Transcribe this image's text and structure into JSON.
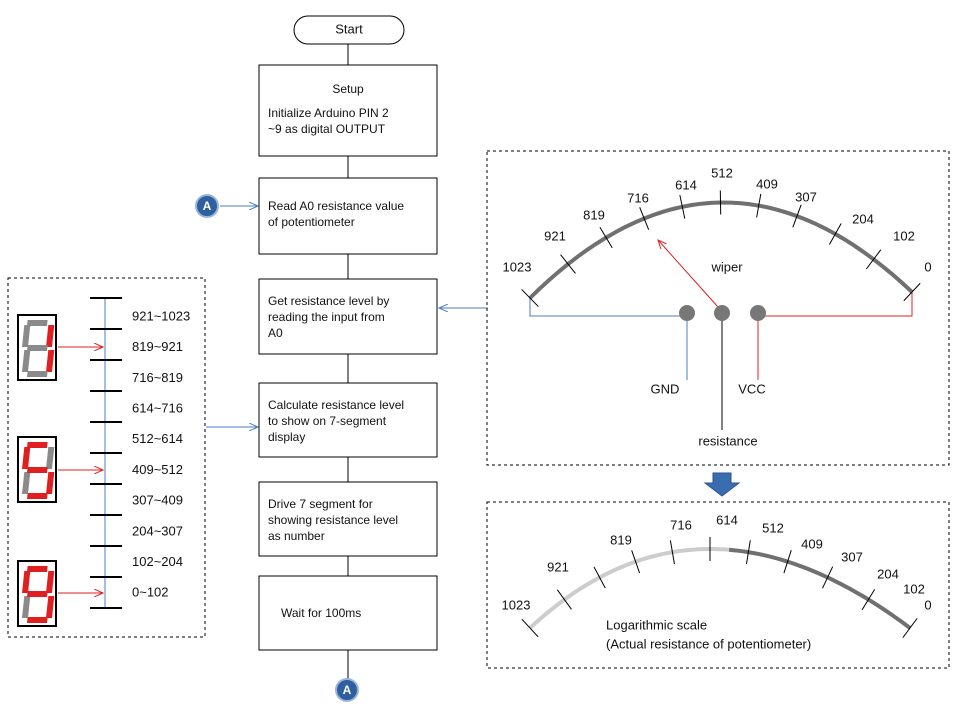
{
  "flowchart": {
    "start": "Start",
    "steps": [
      {
        "title": "Setup",
        "lines": [
          "Initialize Arduino PIN 2",
          "~9 as digital OUTPUT"
        ]
      },
      {
        "lines": [
          "Read A0 resistance value",
          "of potentiometer"
        ]
      },
      {
        "lines": [
          "Get resistance level by",
          "reading the input from",
          "A0"
        ]
      },
      {
        "lines": [
          "Calculate resistance level",
          "to show on 7-segment",
          "display"
        ]
      },
      {
        "lines": [
          "Drive 7 segment for",
          "showing resistance level",
          "as number"
        ]
      },
      {
        "lines": [
          "Wait for 100ms"
        ]
      }
    ],
    "connectors": [
      "A",
      "A"
    ]
  },
  "level_map": {
    "ranges": [
      "921~1023",
      "819~921",
      "716~819",
      "614~716",
      "512~614",
      "409~512",
      "307~409",
      "204~307",
      "102~204",
      "0~102"
    ]
  },
  "potentiometer": {
    "scale": [
      "1023",
      "921",
      "819",
      "716",
      "614",
      "512",
      "409",
      "307",
      "204",
      "102",
      "0"
    ],
    "wiper": "wiper",
    "gnd": "GND",
    "vcc": "VCC",
    "output": "resistance"
  },
  "log_scale": {
    "scale": [
      "1023",
      "921",
      "819",
      "716",
      "614",
      "512",
      "409",
      "307",
      "204",
      "102",
      "0"
    ],
    "caption": [
      "Logarithmic scale",
      "(Actual resistance of potentiometer)"
    ]
  }
}
